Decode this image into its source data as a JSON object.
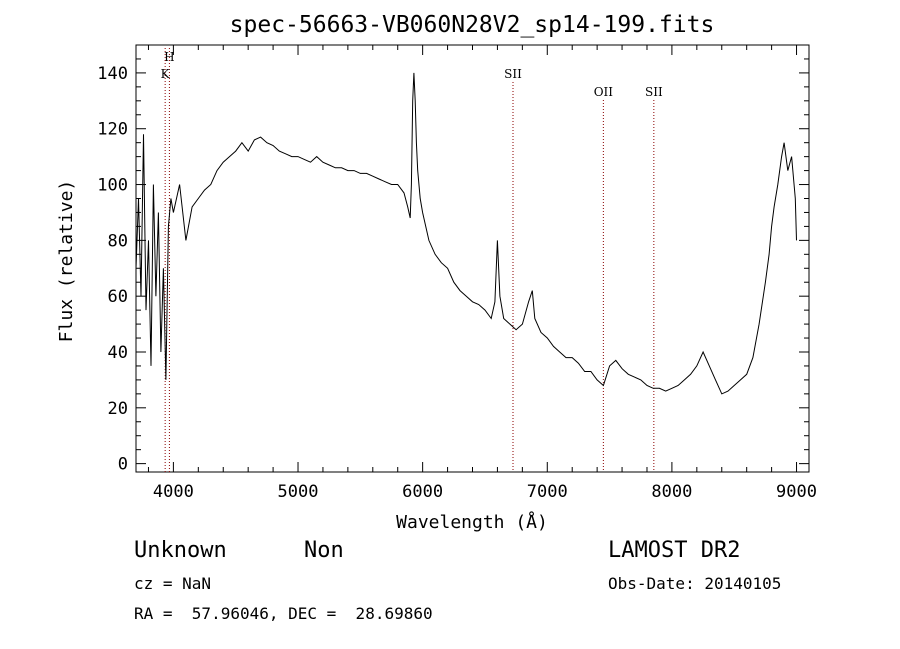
{
  "chart_data": {
    "type": "line",
    "title": "spec-56663-VB060N28V2_sp14-199.fits",
    "xlabel": "Wavelength (Å)",
    "ylabel": "Flux (relative)",
    "xlim": [
      3700,
      9100
    ],
    "ylim": [
      -3,
      150
    ],
    "xticks": [
      4000,
      5000,
      6000,
      7000,
      8000,
      9000
    ],
    "yticks": [
      0,
      20,
      40,
      60,
      80,
      100,
      120,
      140
    ],
    "grid": false,
    "line_color": "#000000",
    "marker_color": "#8b0000",
    "spectral_lines": [
      {
        "label": "H",
        "x": 3968
      },
      {
        "label": "K",
        "x": 3934
      },
      {
        "label": "SII",
        "x": 6725
      },
      {
        "label": "OII",
        "x": 7450
      },
      {
        "label": "SII",
        "x": 7855
      }
    ],
    "series": [
      {
        "x": [
          3700,
          3720,
          3740,
          3760,
          3780,
          3800,
          3820,
          3840,
          3860,
          3880,
          3900,
          3920,
          3940,
          3960,
          3980,
          4000,
          4050,
          4100,
          4150,
          4200,
          4250,
          4300,
          4350,
          4400,
          4450,
          4500,
          4550,
          4600,
          4650,
          4700,
          4750,
          4800,
          4850,
          4900,
          4950,
          5000,
          5050,
          5100,
          5150,
          5200,
          5250,
          5300,
          5350,
          5400,
          5450,
          5500,
          5550,
          5600,
          5650,
          5700,
          5750,
          5800,
          5850,
          5880,
          5900,
          5910,
          5920,
          5930,
          5940,
          5950,
          5960,
          5980,
          6000,
          6050,
          6100,
          6150,
          6200,
          6250,
          6300,
          6350,
          6400,
          6450,
          6500,
          6550,
          6580,
          6600,
          6620,
          6650,
          6700,
          6750,
          6800,
          6850,
          6880,
          6900,
          6950,
          7000,
          7050,
          7100,
          7150,
          7200,
          7250,
          7300,
          7350,
          7400,
          7450,
          7500,
          7550,
          7600,
          7650,
          7700,
          7750,
          7800,
          7850,
          7900,
          7950,
          8000,
          8050,
          8100,
          8150,
          8200,
          8250,
          8300,
          8350,
          8400,
          8450,
          8500,
          8550,
          8600,
          8650,
          8700,
          8750,
          8780,
          8800,
          8820,
          8850,
          8880,
          8900,
          8930,
          8960,
          8990,
          9000
        ],
        "y": [
          70,
          95,
          60,
          118,
          55,
          80,
          35,
          100,
          60,
          90,
          40,
          70,
          30,
          85,
          95,
          90,
          100,
          80,
          92,
          95,
          98,
          100,
          105,
          108,
          110,
          112,
          115,
          112,
          116,
          117,
          115,
          114,
          112,
          111,
          110,
          110,
          109,
          108,
          110,
          108,
          107,
          106,
          106,
          105,
          105,
          104,
          104,
          103,
          102,
          101,
          100,
          100,
          97,
          92,
          88,
          100,
          130,
          140,
          130,
          115,
          105,
          95,
          90,
          80,
          75,
          72,
          70,
          65,
          62,
          60,
          58,
          57,
          55,
          52,
          58,
          80,
          60,
          52,
          50,
          48,
          50,
          58,
          62,
          52,
          47,
          45,
          42,
          40,
          38,
          38,
          36,
          33,
          33,
          30,
          28,
          35,
          37,
          34,
          32,
          31,
          30,
          28,
          27,
          27,
          26,
          27,
          28,
          30,
          32,
          35,
          40,
          35,
          30,
          25,
          26,
          28,
          30,
          32,
          38,
          50,
          65,
          75,
          85,
          92,
          100,
          110,
          115,
          105,
          110,
          95,
          80
        ]
      }
    ]
  },
  "info": {
    "obj_class": "Unknown",
    "obj_subclass": "Non",
    "survey": "LAMOST DR2",
    "cz": "cz = NaN",
    "obs_date": "Obs-Date: 20140105",
    "radec": "RA =  57.96046, DEC =  28.69860"
  }
}
